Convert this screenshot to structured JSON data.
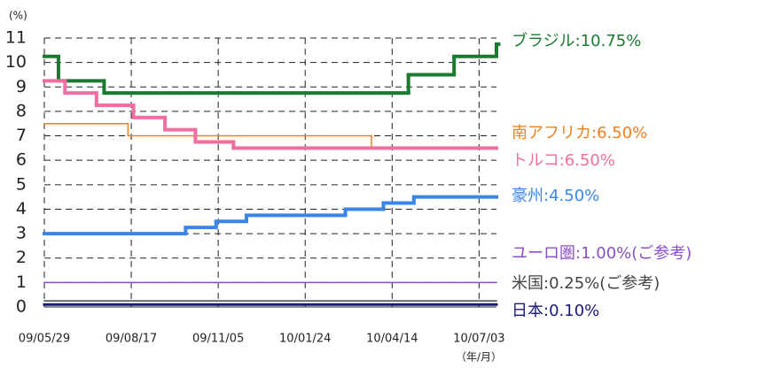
{
  "chart_data": {
    "type": "step-line",
    "y_unit": "(%)",
    "x_unit": "（年/月）",
    "xlim": [
      "2009-05-29",
      "2010-07-19"
    ],
    "xticks": [
      {
        "value": "2009-05-29",
        "label": "09/05/29"
      },
      {
        "value": "2009-08-17",
        "label": "09/08/17"
      },
      {
        "value": "2009-11-05",
        "label": "09/11/05"
      },
      {
        "value": "2010-01-24",
        "label": "10/01/24"
      },
      {
        "value": "2010-04-14",
        "label": "10/04/14"
      },
      {
        "value": "2010-07-03",
        "label": "10/07/03"
      }
    ],
    "ylim": [
      0,
      11
    ],
    "yticks": [
      0,
      1,
      2,
      3,
      4,
      5,
      6,
      7,
      8,
      9,
      10,
      11
    ],
    "grid": true,
    "series": [
      {
        "name": "ブラジル:10.75%",
        "color": "#1a7a30",
        "width": 4,
        "x": [
          "2009-05-29",
          "2009-06-11",
          "2009-07-23",
          "2010-04-29",
          "2010-06-10",
          "2010-07-21"
        ],
        "values": [
          10.25,
          9.25,
          8.75,
          9.5,
          10.25,
          10.75
        ]
      },
      {
        "name": "南アフリカ:6.50%",
        "color": "#f08020",
        "width": 1.5,
        "x": [
          "2009-05-29",
          "2009-08-14",
          "2010-03-26"
        ],
        "values": [
          7.5,
          7.0,
          6.5
        ]
      },
      {
        "name": "トルコ:6.50%",
        "color": "#f06fa0",
        "width": 4,
        "x": [
          "2009-05-29",
          "2009-06-17",
          "2009-07-16",
          "2009-08-19",
          "2009-09-17",
          "2009-10-15",
          "2009-11-19"
        ],
        "values": [
          9.25,
          8.75,
          8.25,
          7.75,
          7.25,
          6.75,
          6.5
        ]
      },
      {
        "name": "豪州:4.50%",
        "color": "#3a86e8",
        "width": 4,
        "x": [
          "2009-05-29",
          "2009-10-06",
          "2009-11-03",
          "2009-12-01",
          "2010-03-02",
          "2010-04-06",
          "2010-05-04"
        ],
        "values": [
          3.0,
          3.25,
          3.5,
          3.75,
          4.0,
          4.25,
          4.5
        ]
      },
      {
        "name": "ユーロ圏:1.00%(ご参考)",
        "color": "#8a4fc8",
        "width": 1.5,
        "x": [
          "2009-05-29"
        ],
        "values": [
          1.0
        ]
      },
      {
        "name": "米国:0.25%(ご参考)",
        "color": "#444444",
        "width": 1.5,
        "x": [
          "2009-05-29"
        ],
        "values": [
          0.25
        ]
      },
      {
        "name": "日本:0.10%",
        "color": "#1a1a7a",
        "width": 3,
        "x": [
          "2009-05-29"
        ],
        "values": [
          0.1
        ]
      }
    ]
  }
}
